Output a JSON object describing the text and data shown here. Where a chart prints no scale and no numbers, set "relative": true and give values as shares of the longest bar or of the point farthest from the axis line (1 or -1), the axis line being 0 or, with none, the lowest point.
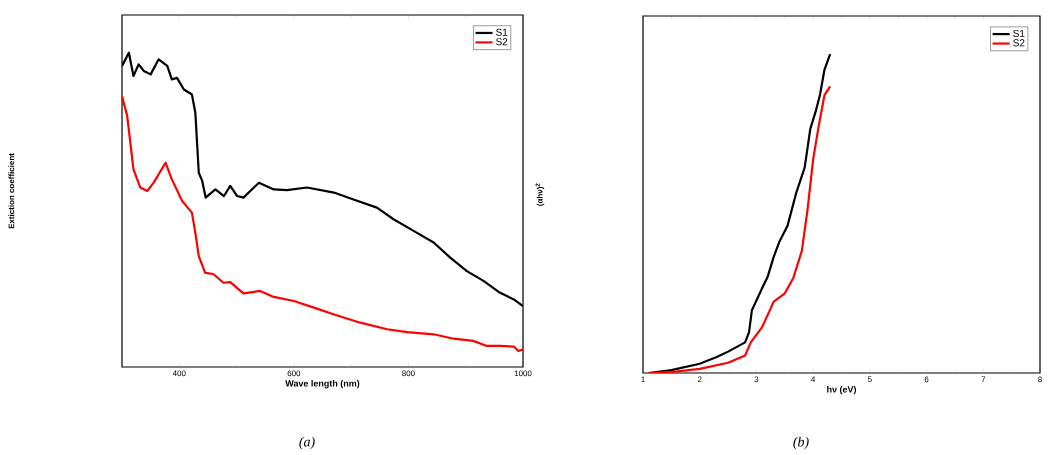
{
  "chart_data": [
    {
      "type": "line",
      "relative": true,
      "xlabel": "Wave length (nm)",
      "ylabel": "Extiction coefficient",
      "xlim": [
        300,
        1000
      ],
      "xticks": [
        400,
        600,
        800,
        1000
      ],
      "legend": "top right",
      "annotations": [
        "(a)"
      ],
      "series": [
        {
          "name": "S1",
          "color": "#000000",
          "x": [
            300,
            312,
            320,
            329,
            338,
            350,
            364,
            379,
            387,
            396,
            408,
            422,
            428,
            434,
            440,
            446,
            463,
            478,
            489,
            501,
            512,
            539,
            565,
            588,
            623,
            670,
            704,
            745,
            774,
            809,
            844,
            873,
            902,
            931,
            960,
            984,
            1000
          ],
          "values": [
            0.958,
            1.0,
            0.926,
            0.963,
            0.942,
            0.931,
            0.979,
            0.958,
            0.915,
            0.92,
            0.883,
            0.867,
            0.809,
            0.618,
            0.592,
            0.539,
            0.565,
            0.544,
            0.576,
            0.544,
            0.539,
            0.586,
            0.565,
            0.563,
            0.571,
            0.555,
            0.533,
            0.507,
            0.47,
            0.433,
            0.396,
            0.348,
            0.305,
            0.274,
            0.236,
            0.215,
            0.194
          ]
        },
        {
          "name": "S2",
          "color": "#ff0000",
          "x": [
            300,
            309,
            320,
            332,
            344,
            355,
            376,
            387,
            405,
            422,
            428,
            434,
            445,
            460,
            477,
            489,
            512,
            541,
            565,
            600,
            635,
            669,
            716,
            763,
            798,
            844,
            879,
            913,
            937,
            960,
            984,
            992,
            1000
          ],
          "values": [
            0.862,
            0.799,
            0.629,
            0.571,
            0.56,
            0.586,
            0.65,
            0.597,
            0.528,
            0.491,
            0.427,
            0.353,
            0.3,
            0.295,
            0.268,
            0.27,
            0.234,
            0.242,
            0.223,
            0.21,
            0.189,
            0.168,
            0.141,
            0.12,
            0.111,
            0.104,
            0.09,
            0.083,
            0.067,
            0.067,
            0.065,
            0.051,
            0.056
          ]
        }
      ]
    },
    {
      "type": "line",
      "relative": true,
      "xlabel": "hν (eV)",
      "ylabel": "(αhν)$^{2}$",
      "xlim": [
        1,
        8
      ],
      "xticks": [
        1,
        2,
        3,
        4,
        5,
        6,
        7,
        8
      ],
      "legend": "top right",
      "annotations": [
        "(b)"
      ],
      "series": [
        {
          "name": "S1",
          "color": "#000000",
          "x": [
            1.1,
            1.5,
            2.0,
            2.3,
            2.5,
            2.8,
            2.87,
            2.92,
            3.1,
            3.2,
            3.3,
            3.4,
            3.55,
            3.7,
            3.85,
            3.95,
            4.05,
            4.12,
            4.2,
            4.3
          ],
          "values": [
            0,
            0.009,
            0.029,
            0.05,
            0.067,
            0.096,
            0.128,
            0.197,
            0.266,
            0.303,
            0.362,
            0.41,
            0.463,
            0.564,
            0.644,
            0.766,
            0.824,
            0.872,
            0.952,
            1.0
          ]
        },
        {
          "name": "S2",
          "color": "#ff0000",
          "x": [
            1.1,
            1.5,
            2.0,
            2.5,
            2.8,
            2.9,
            3.1,
            3.25,
            3.3,
            3.5,
            3.65,
            3.8,
            3.9,
            4.0,
            4.1,
            4.2,
            4.3
          ],
          "values": [
            0,
            0.003,
            0.013,
            0.032,
            0.055,
            0.096,
            0.144,
            0.202,
            0.223,
            0.25,
            0.298,
            0.383,
            0.511,
            0.67,
            0.777,
            0.872,
            0.899
          ]
        }
      ]
    }
  ]
}
